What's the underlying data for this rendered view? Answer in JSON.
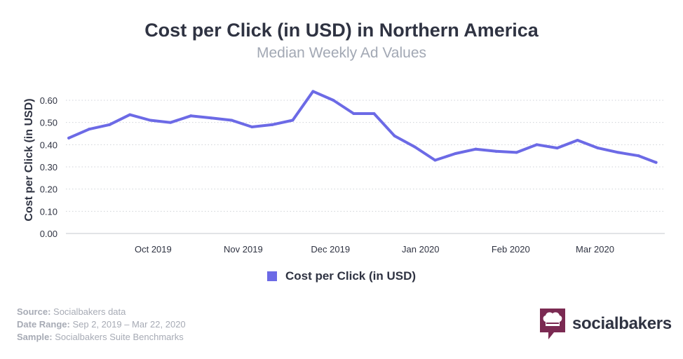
{
  "title": "Cost per Click (in USD) in Northern America",
  "subtitle": "Median Weekly Ad Values",
  "colors": {
    "series": "#6c6ae6",
    "brand": "#7b2a52",
    "grid": "#cfd2d8"
  },
  "chart_data": {
    "type": "line",
    "ylabel": "Cost per Click (in USD)",
    "ylim": [
      0,
      0.6
    ],
    "y_ticks": [
      "0.00",
      "0.10",
      "0.20",
      "0.30",
      "0.40",
      "0.50",
      "0.60"
    ],
    "x_tick_labels": [
      "Oct 2019",
      "Nov 2019",
      "Dec 2019",
      "Jan 2020",
      "Feb 2020",
      "Mar 2020"
    ],
    "x_ticks": [
      "2019-10-01",
      "2019-11-01",
      "2019-12-01",
      "2020-01-01",
      "2020-02-01",
      "2020-03-01"
    ],
    "x_range": [
      "2019-09-01",
      "2020-03-25"
    ],
    "grid": "horizontal dotted",
    "legend": "bottom-center",
    "series": [
      {
        "name": "Cost per Click (in USD)",
        "x": [
          "2019-09-02",
          "2019-09-09",
          "2019-09-16",
          "2019-09-23",
          "2019-09-30",
          "2019-10-07",
          "2019-10-14",
          "2019-10-21",
          "2019-10-28",
          "2019-11-04",
          "2019-11-11",
          "2019-11-18",
          "2019-11-25",
          "2019-12-02",
          "2019-12-09",
          "2019-12-16",
          "2019-12-23",
          "2019-12-30",
          "2020-01-06",
          "2020-01-13",
          "2020-01-20",
          "2020-01-27",
          "2020-02-03",
          "2020-02-10",
          "2020-02-17",
          "2020-02-24",
          "2020-03-02",
          "2020-03-09",
          "2020-03-16",
          "2020-03-22"
        ],
        "values": [
          0.43,
          0.47,
          0.49,
          0.535,
          0.51,
          0.5,
          0.53,
          0.52,
          0.51,
          0.48,
          0.49,
          0.51,
          0.64,
          0.6,
          0.54,
          0.54,
          0.44,
          0.39,
          0.33,
          0.36,
          0.38,
          0.37,
          0.365,
          0.4,
          0.385,
          0.42,
          0.385,
          0.365,
          0.35,
          0.32
        ]
      }
    ]
  },
  "footer": {
    "source_label": "Source:",
    "source_value": "Socialbakers data",
    "range_label": "Date Range:",
    "range_value": "Sep 2, 2019 – Mar 22, 2020",
    "sample_label": "Sample:",
    "sample_value": "Socialbakers Suite Benchmarks"
  },
  "brand": {
    "name": "socialbakers",
    "icon": "chef-hat-speech-bubble-icon"
  }
}
